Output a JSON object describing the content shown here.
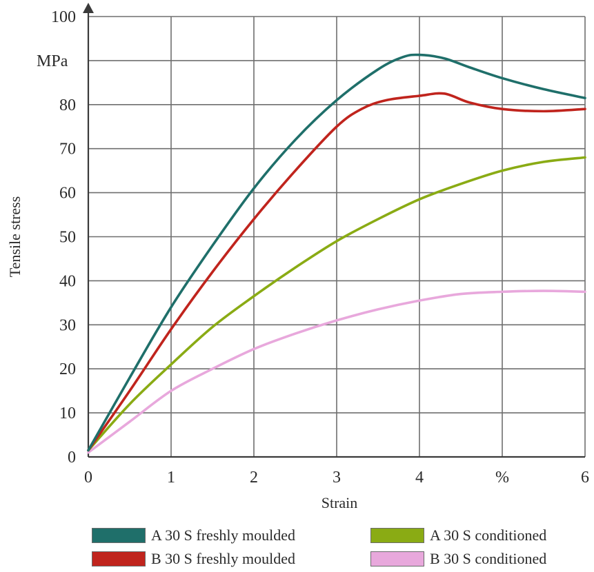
{
  "chart_data": {
    "type": "line",
    "ylabel": "Tensile stress",
    "yunit_label": "MPa",
    "xlabel": "Strain",
    "xlim": [
      0,
      6
    ],
    "ylim": [
      0,
      100
    ],
    "grid": true,
    "legend_position": "bottom",
    "x_ticks": [
      {
        "value": 0,
        "label": "0"
      },
      {
        "value": 1,
        "label": "1"
      },
      {
        "value": 2,
        "label": "2"
      },
      {
        "value": 3,
        "label": "3"
      },
      {
        "value": 4,
        "label": "4"
      },
      {
        "value": 5,
        "label": "%"
      },
      {
        "value": 6,
        "label": "6"
      }
    ],
    "y_ticks": [
      {
        "value": 0,
        "label": "0"
      },
      {
        "value": 10,
        "label": "10"
      },
      {
        "value": 20,
        "label": "20"
      },
      {
        "value": 30,
        "label": "30"
      },
      {
        "value": 40,
        "label": "40"
      },
      {
        "value": 50,
        "label": "50"
      },
      {
        "value": 60,
        "label": "60"
      },
      {
        "value": 70,
        "label": "70"
      },
      {
        "value": 80,
        "label": "80"
      },
      {
        "value": 100,
        "label": "100"
      }
    ],
    "series": [
      {
        "name": "A 30 S freshly moulded",
        "color": "#1f6f6a",
        "x": [
          0,
          0.5,
          1,
          1.5,
          2,
          2.5,
          3,
          3.5,
          3.8,
          4,
          4.3,
          4.6,
          5,
          5.5,
          6
        ],
        "y": [
          1.5,
          18,
          34,
          48,
          61,
          72,
          81,
          88,
          90.8,
          91.3,
          90.5,
          88.5,
          86,
          83.5,
          81.5
        ]
      },
      {
        "name": "B 30 S freshly moulded",
        "color": "#c0241d",
        "x": [
          0,
          0.5,
          1,
          1.5,
          2,
          2.5,
          3,
          3.3,
          3.6,
          4,
          4.3,
          4.6,
          5,
          5.5,
          6
        ],
        "y": [
          1.5,
          15,
          29,
          42,
          54,
          65,
          75,
          79,
          81,
          82,
          82.5,
          80.5,
          79,
          78.5,
          79
        ]
      },
      {
        "name": "A 30 S conditioned",
        "color": "#8aab14",
        "x": [
          0,
          0.5,
          1,
          1.5,
          2,
          2.5,
          3,
          3.5,
          4,
          4.5,
          5,
          5.5,
          6
        ],
        "y": [
          1.5,
          12,
          21,
          29.5,
          36.5,
          43,
          49,
          54,
          58.5,
          62,
          65,
          67,
          68
        ]
      },
      {
        "name": "B 30 S conditioned",
        "color": "#e8a8dc",
        "x": [
          0,
          0.5,
          1,
          1.5,
          2,
          2.5,
          3,
          3.5,
          4,
          4.5,
          5,
          5.5,
          6
        ],
        "y": [
          1,
          8,
          15,
          20,
          24.5,
          28,
          31,
          33.5,
          35.5,
          37,
          37.5,
          37.7,
          37.5
        ]
      }
    ]
  },
  "legend": {
    "items": [
      {
        "label": "A 30 S freshly moulded",
        "color": "#1f6f6a"
      },
      {
        "label": "A 30 S conditioned",
        "color": "#8aab14"
      },
      {
        "label": "B 30 S freshly moulded",
        "color": "#c0241d"
      },
      {
        "label": "B 30 S conditioned",
        "color": "#e8a8dc"
      }
    ]
  }
}
